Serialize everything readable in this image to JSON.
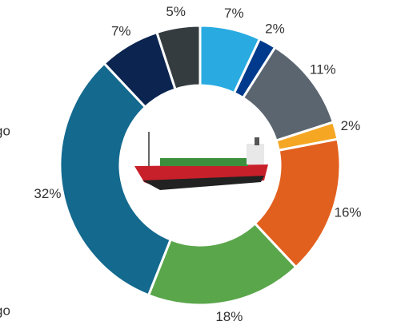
{
  "chart_data": {
    "type": "donut",
    "values": [
      7,
      2,
      11,
      2,
      16,
      18,
      32,
      7,
      5
    ],
    "value_labels": [
      "7%",
      "2%",
      "11%",
      "2%",
      "16%",
      "18%",
      "32%",
      "7%",
      "5%"
    ],
    "colors": [
      "#29abe2",
      "#003a8c",
      "#5a6570",
      "#f5a623",
      "#e2601e",
      "#5aa64a",
      "#13698e",
      "#0b2550",
      "#343c40"
    ],
    "annotations": [
      "go",
      "go"
    ]
  }
}
